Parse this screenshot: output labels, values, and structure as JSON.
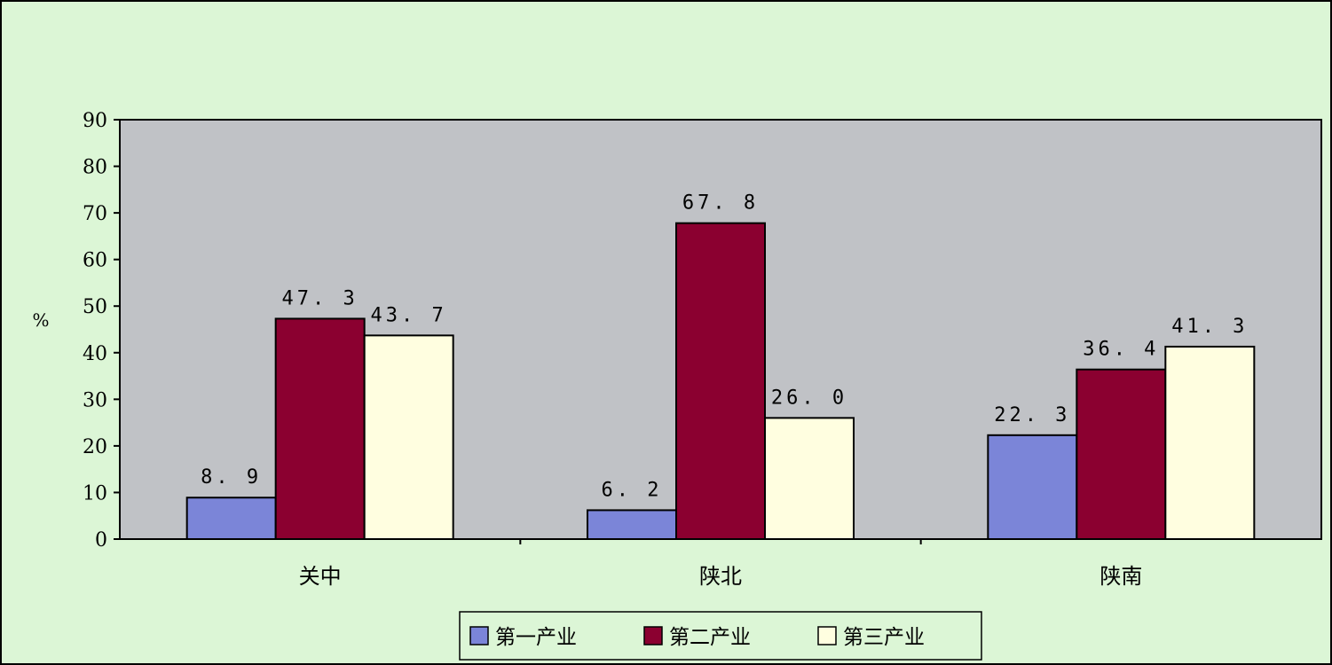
{
  "chart_data": {
    "type": "bar",
    "title": "",
    "xlabel": "",
    "ylabel": "%",
    "ylim": [
      0,
      90
    ],
    "yticks": [
      0,
      10,
      20,
      30,
      40,
      50,
      60,
      70,
      80,
      90
    ],
    "categories": [
      "关中",
      "陕北",
      "陕南"
    ],
    "series": [
      {
        "name": "第一产业",
        "values": [
          8.9,
          6.2,
          22.3
        ],
        "labels": [
          "8. 9",
          "6. 2",
          "22. 3"
        ],
        "color": "#7b85d8"
      },
      {
        "name": "第二产业",
        "values": [
          47.3,
          67.8,
          36.4
        ],
        "labels": [
          "47. 3",
          "67. 8",
          "36. 4"
        ],
        "color": "#8b0030"
      },
      {
        "name": "第三产业",
        "values": [
          43.7,
          26.0,
          41.3
        ],
        "labels": [
          "43. 7",
          "26. 0",
          "41. 3"
        ],
        "color": "#fffee0"
      }
    ],
    "plot_background": "#c0c2c6",
    "page_background": "#dcf6d6",
    "grid": false,
    "legend_position": "bottom"
  }
}
